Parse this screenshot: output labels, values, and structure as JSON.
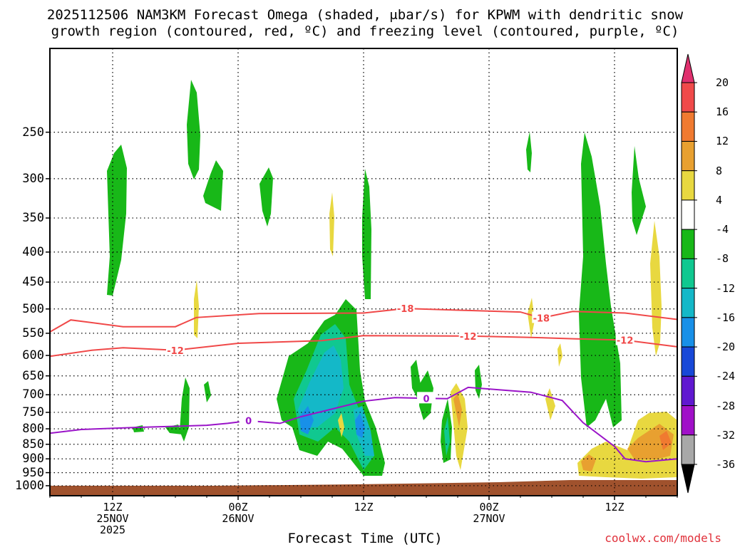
{
  "title": {
    "line1": "2025112506 NAM3KM Forecast Omega (shaded, μbar/s) for KPWM with dendritic snow",
    "line2": "growth region (contoured, red, ºC) and freezing level (contoured, purple, ºC)"
  },
  "credit": "coolwx.com/models",
  "chart_data": {
    "type": "heatmap",
    "xlabel": "Forecast Time (UTC)",
    "ylabel": "",
    "y_scale": "log-pressure",
    "y_unit": "hPa",
    "yticks": [
      "250",
      "300",
      "350",
      "400",
      "450",
      "500",
      "550",
      "600",
      "650",
      "700",
      "750",
      "800",
      "850",
      "900",
      "950",
      "1000"
    ],
    "xrange_hours": [
      0,
      60
    ],
    "xticks": [
      {
        "hour": 6,
        "line1": "12Z",
        "line2": "25NOV",
        "line3": "2025"
      },
      {
        "hour": 18,
        "line1": "00Z",
        "line2": "26NOV",
        "line3": ""
      },
      {
        "hour": 30,
        "line1": "12Z",
        "line2": "",
        "line3": ""
      },
      {
        "hour": 42,
        "line1": "00Z",
        "line2": "27NOV",
        "line3": ""
      },
      {
        "hour": 54,
        "line1": "12Z",
        "line2": "",
        "line3": ""
      }
    ],
    "grid": true,
    "colorbar": {
      "unit": "μbar/s",
      "labels": [
        "20",
        "16",
        "12",
        "8",
        "4",
        "-4",
        "-8",
        "-12",
        "-16",
        "-20",
        "-24",
        "-28",
        "-32",
        "-36"
      ],
      "colors": [
        "#e0306e",
        "#f04a4a",
        "#f07a30",
        "#e8a030",
        "#e8d840",
        "#ffffff",
        "#18b818",
        "#10c890",
        "#14b8c8",
        "#1890e8",
        "#1848d8",
        "#6018d0",
        "#a010c8",
        "#a8a8a8",
        "#000000"
      ]
    },
    "contours": [
      {
        "name": "-18",
        "color": "#f04848",
        "points": [
          [
            0,
            547
          ],
          [
            2,
            522
          ],
          [
            7,
            536
          ],
          [
            12,
            536
          ],
          [
            14,
            517
          ],
          [
            20,
            509
          ],
          [
            30,
            508
          ],
          [
            34,
            499
          ],
          [
            40,
            503
          ],
          [
            45,
            506
          ],
          [
            47,
            518
          ],
          [
            50,
            505
          ],
          [
            55,
            508
          ],
          [
            60,
            521
          ]
        ]
      },
      {
        "name": "-12",
        "color": "#f04848",
        "points": [
          [
            0,
            602
          ],
          [
            4,
            588
          ],
          [
            7,
            582
          ],
          [
            12,
            588
          ],
          [
            18,
            572
          ],
          [
            26,
            566
          ],
          [
            30,
            555
          ],
          [
            40,
            556
          ],
          [
            46,
            559
          ],
          [
            50,
            562
          ],
          [
            55,
            565
          ],
          [
            60,
            580
          ]
        ]
      },
      {
        "name": "0",
        "color": "#9a14c8",
        "points": [
          [
            0,
            814
          ],
          [
            3,
            802
          ],
          [
            8,
            796
          ],
          [
            12,
            792
          ],
          [
            15,
            789
          ],
          [
            17,
            783
          ],
          [
            19,
            775
          ],
          [
            22,
            783
          ],
          [
            24,
            763
          ],
          [
            30,
            718
          ],
          [
            33,
            708
          ],
          [
            36,
            710
          ],
          [
            38,
            711
          ],
          [
            40,
            680
          ],
          [
            46,
            693
          ],
          [
            49,
            716
          ],
          [
            51,
            781
          ],
          [
            54,
            857
          ],
          [
            55,
            900
          ],
          [
            57,
            910
          ],
          [
            60,
            900
          ]
        ]
      }
    ],
    "omega_regions_approx": [
      {
        "value_range": [
          -8,
          -4
        ],
        "color": "green",
        "desc_pressure_hpa": [
          290,
          480
        ],
        "hours": [
          5.5,
          7
        ]
      },
      {
        "value_range": [
          -20,
          -8
        ],
        "color": "teal-blue",
        "desc_pressure_hpa": [
          600,
          960
        ],
        "hours": [
          22,
          31
        ]
      },
      {
        "value_range": [
          4,
          12
        ],
        "color": "yellow-orange",
        "desc_pressure_hpa": [
          800,
          980
        ],
        "hours": [
          51,
          60
        ]
      }
    ]
  }
}
